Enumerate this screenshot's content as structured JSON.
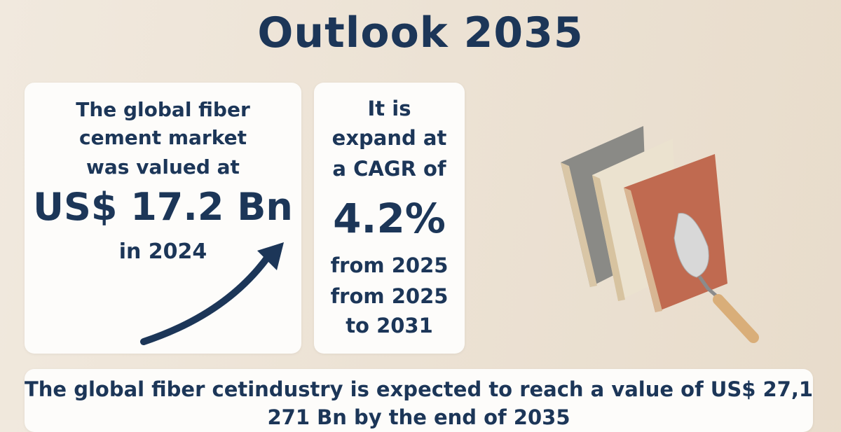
{
  "title": "Outlook 2035",
  "cards": [
    {
      "lines": [
        "The global fiber",
        "cement market",
        "was valued at",
        "US$ 17.2 Bn",
        "in 2024"
      ]
    },
    {
      "lines": [
        "It is",
        "expand at",
        "a CAGR of",
        "4.2%",
        "from 2025",
        "from 2025",
        "to 2031"
      ]
    }
  ],
  "footer": {
    "lines": [
      "The global fiber cetindustry is expected to reach a value of US$ 27,1",
      "271 Bn by the end of 2035"
    ]
  }
}
